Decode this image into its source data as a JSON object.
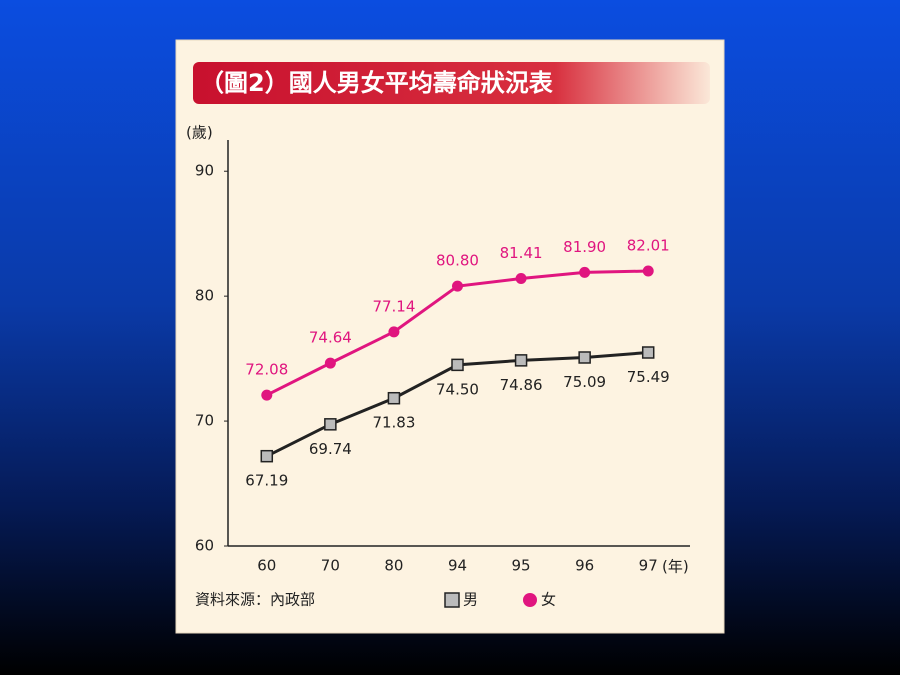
{
  "chart_data": {
    "type": "line",
    "title": "（圖2）國人男女平均壽命狀況表",
    "y_label": "(歲)",
    "x_label": "(年)",
    "source": "資料來源：內政部",
    "categories": [
      "60",
      "70",
      "80",
      "94",
      "95",
      "96",
      "97"
    ],
    "series": [
      {
        "name": "男",
        "color": "#222222",
        "marker": "square",
        "values": [
          67.19,
          69.74,
          71.83,
          74.5,
          74.86,
          75.09,
          75.49
        ],
        "value_labels": [
          "67.19",
          "69.74",
          "71.83",
          "74.50",
          "74.86",
          "75.09",
          "75.49"
        ]
      },
      {
        "name": "女",
        "color": "#e0157f",
        "marker": "circle",
        "values": [
          72.08,
          74.64,
          77.14,
          80.8,
          81.41,
          81.9,
          82.01
        ],
        "value_labels": [
          "72.08",
          "74.64",
          "77.14",
          "80.80",
          "81.41",
          "81.90",
          "82.01"
        ]
      }
    ],
    "ylim": [
      60,
      92.5
    ],
    "yticks": [
      60,
      70,
      80,
      90
    ],
    "grid": false
  }
}
